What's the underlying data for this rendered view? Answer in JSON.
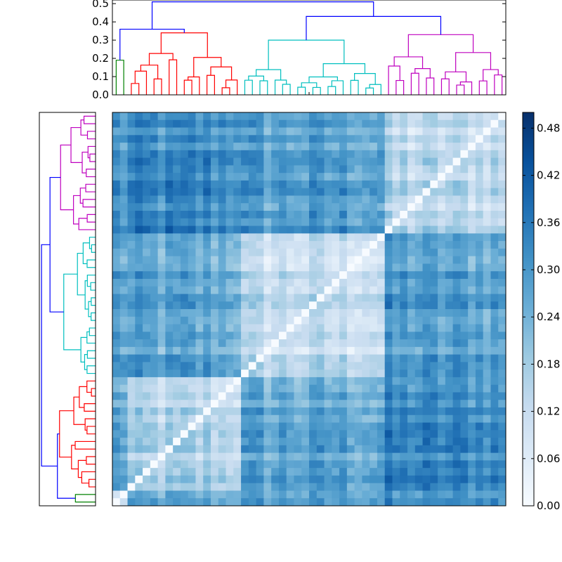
{
  "chart_data": [
    {
      "type": "dendrogram",
      "orientation": "top",
      "ylim": [
        0,
        0.52
      ],
      "y_ticks": [
        "0.0",
        "0.1",
        "0.2",
        "0.3",
        "0.4",
        "0.5"
      ],
      "root_height": 0.51,
      "cluster_colors": [
        "#008000",
        "#ff0000",
        "#00bfbf",
        "#bf00bf"
      ],
      "link_color": "#0000ff",
      "clusters": [
        {
          "leaves": 2,
          "height": 0.19
        },
        {
          "leaves": 15,
          "height": 0.34
        },
        {
          "leaves": 19,
          "height": 0.3
        },
        {
          "leaves": 16,
          "height": 0.33
        }
      ],
      "upper_links": [
        0.36,
        0.43,
        0.51
      ]
    },
    {
      "type": "dendrogram",
      "orientation": "left",
      "mirrors": "top dendrogram",
      "axis_ticks_shown": false
    },
    {
      "type": "heatmap",
      "rows": 52,
      "cols": 52,
      "cmap": "Blues",
      "diagonal": 0.0,
      "value_range": [
        0.0,
        0.5
      ],
      "colorbar_ticks": [
        "0.00",
        "0.06",
        "0.12",
        "0.18",
        "0.24",
        "0.30",
        "0.36",
        "0.42",
        "0.48"
      ],
      "block_means": [
        [
          0.1,
          0.26,
          0.28,
          0.3
        ],
        [
          0.26,
          0.14,
          0.26,
          0.32
        ],
        [
          0.28,
          0.26,
          0.12,
          0.28
        ],
        [
          0.3,
          0.32,
          0.28,
          0.13
        ]
      ]
    }
  ]
}
